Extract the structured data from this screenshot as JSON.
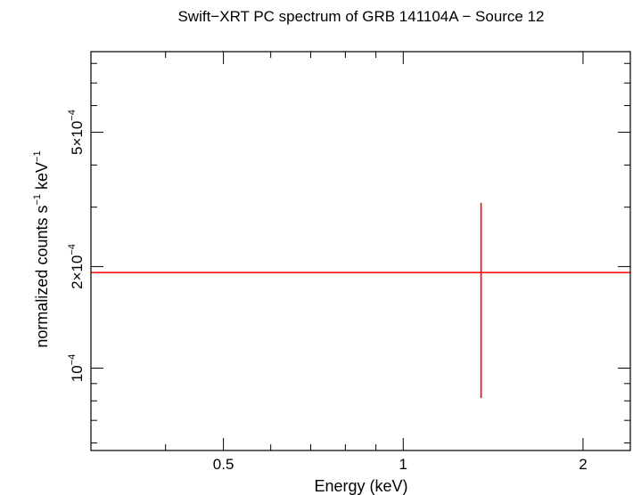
{
  "chart_data": {
    "type": "scatter",
    "title": "Swift−XRT PC spectrum of GRB 141104A − Source 12",
    "xlabel": "Energy (keV)",
    "ylabel": {
      "base": "normalized counts s",
      "exp1": "−1",
      "mid": " keV",
      "exp2": "−1"
    },
    "x_scale": "log",
    "y_scale": "log",
    "xlim": [
      0.3,
      2.4
    ],
    "ylim": [
      5.7e-05,
      0.000867
    ],
    "grid": false,
    "x_ticks": [
      {
        "value": 0.5,
        "label": "0.5"
      },
      {
        "value": 1,
        "label": "1"
      },
      {
        "value": 2,
        "label": "2"
      }
    ],
    "x_minor_ticks": [
      0.3,
      0.4,
      0.6,
      0.7,
      0.8,
      0.9
    ],
    "y_ticks": [
      {
        "value": 0.0001,
        "mantissa": "10",
        "exp": "−4"
      },
      {
        "value": 0.0002,
        "mantissa": "2×10",
        "exp": "−4"
      },
      {
        "value": 0.0005,
        "mantissa": "5×10",
        "exp": "−4"
      }
    ],
    "y_minor_ticks": [
      6e-05,
      7e-05,
      8e-05,
      9e-05,
      0.0003,
      0.0004,
      0.0006,
      0.0007,
      0.0008
    ],
    "series": [
      {
        "color": "#ff0000",
        "points": [
          {
            "x": 1.35,
            "y": 0.000192,
            "xerr": [
              0.3,
              2.4
            ],
            "yerr": [
              8.15e-05,
              0.000309
            ]
          }
        ]
      }
    ]
  }
}
